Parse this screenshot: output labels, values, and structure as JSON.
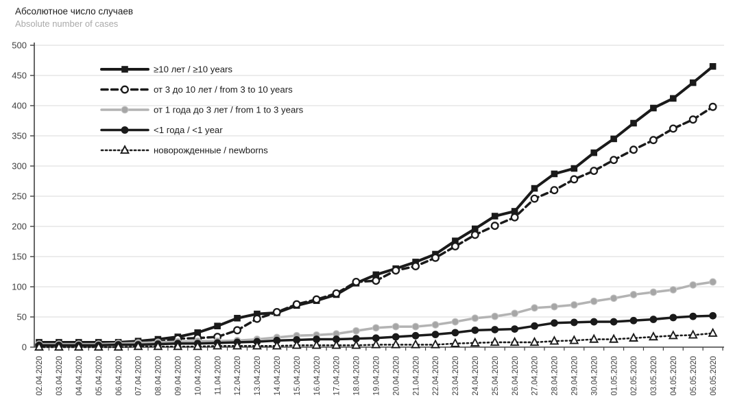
{
  "header": {
    "title_ru": "Абсолютное число случаев",
    "title_en": "Absolute number of cases"
  },
  "chart_data": {
    "type": "line",
    "title": "Абсолютное число случаев / Absolute number of cases",
    "xlabel": "",
    "ylabel": "",
    "ylim": [
      0,
      500
    ],
    "ytick_step": 50,
    "grid": true,
    "legend_position": "top-left-inside",
    "colors": {
      "black": "#1a1a1a",
      "gray_line": "#b3b3b3",
      "gray_marker": "#a6a6a6",
      "gridline": "#d9d9d9",
      "axis": "#404040",
      "tick_label": "#404040"
    },
    "x": [
      "02.04.2020",
      "03.04.2020",
      "04.04.2020",
      "05.04.2020",
      "06.04.2020",
      "07.04.2020",
      "08.04.2020",
      "09.04.2020",
      "10.04.2020",
      "11.04.2020",
      "12.04.2020",
      "13.04.2020",
      "14.04.2020",
      "15.04.2020",
      "16.04.2020",
      "17.04.2020",
      "18.04.2020",
      "19.04.2020",
      "20.04.2020",
      "21.04.2020",
      "22.04.2020",
      "23.04.2020",
      "24.04.2020",
      "25.04.2020",
      "26.04.2020",
      "27.04.2020",
      "28.04.2020",
      "29.04.2020",
      "30.04.2020",
      "01.05.2020",
      "02.05.2020",
      "03.05.2020",
      "04.05.2020",
      "05.05.2020",
      "06.05.2020"
    ],
    "yticks": [
      0,
      50,
      100,
      150,
      200,
      250,
      300,
      350,
      400,
      450,
      500
    ],
    "series": [
      {
        "name": "≥10 лет / ≥10 years",
        "marker": "square-filled",
        "line": "solid-thick",
        "color": "#1a1a1a",
        "values": [
          8,
          8,
          8,
          8,
          8,
          10,
          13,
          17,
          24,
          35,
          48,
          55,
          57,
          69,
          77,
          87,
          106,
          120,
          130,
          141,
          154,
          176,
          196,
          217,
          225,
          263,
          287,
          296,
          322,
          345,
          371,
          396,
          412,
          438,
          465
        ]
      },
      {
        "name": "от 3 до 10 лет / from 3 to 10 years",
        "marker": "circle-open",
        "line": "dashed",
        "color": "#1a1a1a",
        "values": [
          4,
          4,
          4,
          5,
          5,
          6,
          8,
          14,
          15,
          17,
          28,
          47,
          58,
          71,
          79,
          89,
          108,
          110,
          127,
          134,
          148,
          167,
          186,
          201,
          215,
          246,
          260,
          278,
          292,
          310,
          327,
          343,
          362,
          377,
          398
        ]
      },
      {
        "name": "от 1 года до 3 лет / from 1 to 3 years",
        "marker": "circle-filled",
        "line": "solid",
        "color": "#b3b3b3",
        "values": [
          5,
          5,
          5,
          5,
          6,
          7,
          8,
          9,
          10,
          10,
          11,
          13,
          16,
          19,
          20,
          22,
          27,
          32,
          34,
          34,
          37,
          42,
          48,
          51,
          56,
          65,
          67,
          70,
          76,
          81,
          87,
          91,
          95,
          103,
          108
        ]
      },
      {
        "name": "<1 года / <1 year",
        "marker": "circle-filled",
        "line": "solid",
        "color": "#1a1a1a",
        "values": [
          3,
          3,
          3,
          3,
          4,
          4,
          5,
          6,
          6,
          7,
          8,
          9,
          11,
          12,
          13,
          13,
          14,
          15,
          17,
          19,
          21,
          24,
          28,
          29,
          30,
          35,
          40,
          41,
          42,
          42,
          44,
          46,
          49,
          51,
          52
        ]
      },
      {
        "name": "новорожденные / newborns",
        "marker": "triangle-open",
        "line": "dotted",
        "color": "#1a1a1a",
        "values": [
          0,
          0,
          0,
          0,
          0,
          1,
          1,
          1,
          1,
          2,
          2,
          2,
          2,
          3,
          3,
          3,
          3,
          4,
          4,
          4,
          4,
          6,
          7,
          8,
          8,
          8,
          10,
          11,
          13,
          13,
          15,
          17,
          19,
          20,
          23
        ]
      }
    ]
  }
}
